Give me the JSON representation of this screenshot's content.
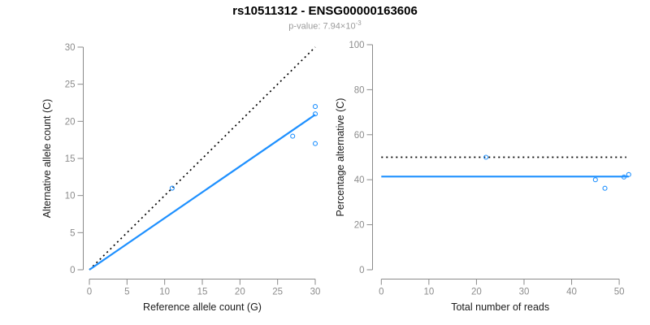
{
  "header": {
    "title": "rs10511312 - ENSG00000163606",
    "pvalue_base": "p-value: 7.94×10",
    "pvalue_exponent": "-3"
  },
  "colors": {
    "accent_blue": "#1E90FF",
    "dotted_black": "#000000",
    "axis_gray": "#8a8a8a",
    "tick_label_gray": "#8c8c8c",
    "axis_title_black": "#1a1a1a",
    "background": "#ffffff"
  },
  "chart_data": [
    {
      "type": "scatter",
      "panel": "allele-counts",
      "title": "",
      "xlabel": "Reference allele count (G)",
      "ylabel": "Alternative allele count (C)",
      "xlim": [
        0,
        30
      ],
      "ylim": [
        0,
        30
      ],
      "xticks": [
        0,
        5,
        10,
        15,
        20,
        25,
        30
      ],
      "yticks": [
        0,
        5,
        10,
        15,
        20,
        25,
        30
      ],
      "grid": false,
      "legend": null,
      "points": [
        {
          "x": 11,
          "y": 11
        },
        {
          "x": 27,
          "y": 18
        },
        {
          "x": 30,
          "y": 17
        },
        {
          "x": 30,
          "y": 21
        },
        {
          "x": 30,
          "y": 22
        }
      ],
      "lines": [
        {
          "name": "identity-line",
          "style": "dotted",
          "color": "#000000",
          "x1": 0,
          "y1": 0,
          "x2": 30,
          "y2": 30
        },
        {
          "name": "regression-line",
          "style": "solid",
          "color": "#1E90FF",
          "x1": 0,
          "y1": 0,
          "x2": 30,
          "y2": 20.9
        }
      ]
    },
    {
      "type": "scatter",
      "panel": "percentage-vs-reads",
      "title": "",
      "xlabel": "Total number of reads",
      "ylabel": "Percentage alternative (C)",
      "xlim": [
        0,
        52
      ],
      "ylim": [
        0,
        100
      ],
      "xticks": [
        0,
        10,
        20,
        30,
        40,
        50
      ],
      "yticks": [
        0,
        20,
        40,
        60,
        80,
        100
      ],
      "grid": false,
      "legend": null,
      "points": [
        {
          "x": 22,
          "y": 50
        },
        {
          "x": 45,
          "y": 40
        },
        {
          "x": 47,
          "y": 36.2
        },
        {
          "x": 51,
          "y": 41.2
        },
        {
          "x": 52,
          "y": 42.3
        }
      ],
      "lines": [
        {
          "name": "expected-50-percent-line",
          "style": "dotted",
          "color": "#000000",
          "x1": 0,
          "y1": 50,
          "x2": 51.5,
          "y2": 50
        },
        {
          "name": "mean-percentage-line",
          "style": "solid",
          "color": "#1E90FF",
          "x1": 0,
          "y1": 41.4,
          "x2": 52,
          "y2": 41.4
        }
      ]
    }
  ]
}
